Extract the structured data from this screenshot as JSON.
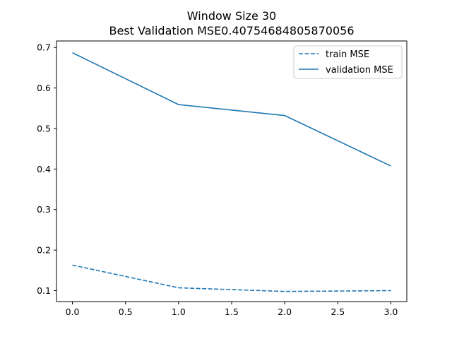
{
  "chart_data": {
    "type": "line",
    "title": "Window Size 30",
    "subtitle": "Best Validation MSE0.40754684805870056",
    "xlabel": "",
    "ylabel": "",
    "xlim": [
      -0.15,
      3.15
    ],
    "ylim": [
      0.073,
      0.716
    ],
    "xticks": [
      0.0,
      0.5,
      1.0,
      1.5,
      2.0,
      2.5,
      3.0
    ],
    "xtick_labels": [
      "0.0",
      "0.5",
      "1.0",
      "1.5",
      "2.0",
      "2.5",
      "3.0"
    ],
    "yticks": [
      0.1,
      0.2,
      0.3,
      0.4,
      0.5,
      0.6,
      0.7
    ],
    "ytick_labels": [
      "0.1",
      "0.2",
      "0.3",
      "0.4",
      "0.5",
      "0.6",
      "0.7"
    ],
    "grid": false,
    "legend_position": "top-right",
    "x": [
      0,
      1,
      2,
      3
    ],
    "series": [
      {
        "name": "train MSE",
        "values": [
          0.163,
          0.107,
          0.098,
          0.1
        ],
        "style": "dashed",
        "color": "#1f77b4"
      },
      {
        "name": "validation MSE",
        "values": [
          0.687,
          0.559,
          0.532,
          0.4075
        ],
        "style": "solid",
        "color": "#1f77b4"
      }
    ]
  }
}
